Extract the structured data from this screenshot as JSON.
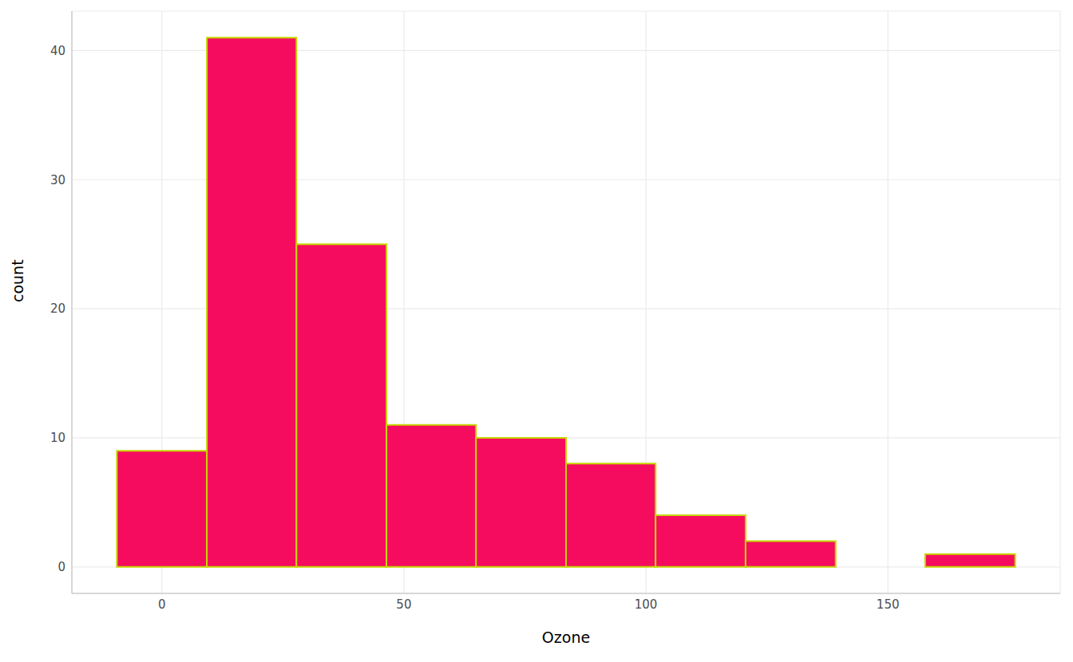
{
  "chart_data": {
    "type": "histogram",
    "x_label": "Ozone",
    "y_label": "count",
    "bins": [
      -9.3,
      9.3,
      27.8,
      46.4,
      64.9,
      83.5,
      102.0,
      120.6,
      139.2,
      157.7,
      176.3
    ],
    "counts": [
      9,
      41,
      25,
      11,
      10,
      8,
      4,
      2,
      0,
      1
    ],
    "color": "#f50c5f",
    "xlim": [
      -18.6,
      185.6
    ],
    "ylim": [
      -2.05,
      43.05
    ],
    "xticks": [
      0,
      50,
      100,
      150
    ],
    "yticks": [
      0,
      10,
      20,
      30,
      40
    ],
    "grid": true
  }
}
